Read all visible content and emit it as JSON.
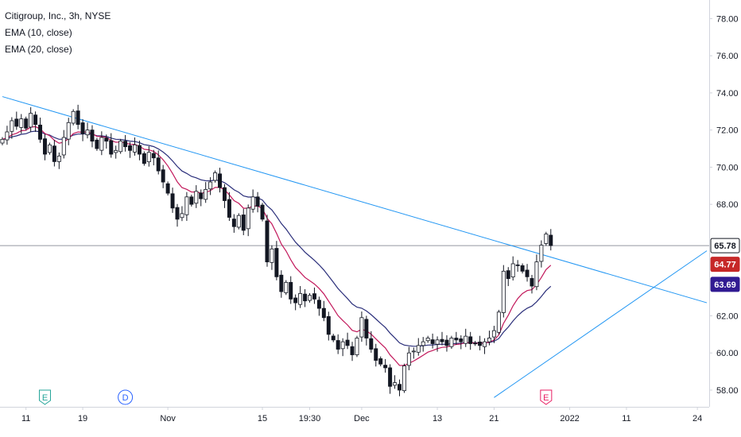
{
  "legend": {
    "symbol": "Citigroup, Inc., 3h, NYSE",
    "ema10": "EMA (10, close)",
    "ema20": "EMA (20, close)"
  },
  "colors": {
    "up": "#131722",
    "down": "#131722",
    "ema10": "#c2185b",
    "ema20": "#2a2e7a",
    "trendline": "#2196f3",
    "price_badge": "#131722",
    "ema10_badge": "#c62828",
    "ema20_badge": "#311b92"
  },
  "chart_data": {
    "type": "candlestick",
    "ylim": [
      57.1,
      79.0
    ],
    "y_ticks": [
      "78.00",
      "76.00",
      "74.00",
      "72.00",
      "70.00",
      "68.00",
      "62.00",
      "60.00",
      "58.00"
    ],
    "x_ticks": [
      "11",
      "19",
      "Nov",
      "15",
      "19:30",
      "Dec",
      "13",
      "21",
      "2022",
      "11",
      "24"
    ],
    "last_price": "65.78",
    "ema10_last": "64.77",
    "ema20_last": "63.69",
    "events": [
      {
        "label": "E",
        "x_index": 9,
        "color": "#26a69a"
      },
      {
        "label": "D",
        "x_index": 26,
        "color": "#2962ff"
      },
      {
        "label": "E",
        "x_index": 115,
        "color": "#e91e63"
      }
    ],
    "closes": [
      71.5,
      71.9,
      72.5,
      72.2,
      72.6,
      72.1,
      72.9,
      72.3,
      71.5,
      70.7,
      71.2,
      70.3,
      70.6,
      71.6,
      72.4,
      73.0,
      72.3,
      71.8,
      72.0,
      71.4,
      71.0,
      71.6,
      71.4,
      70.7,
      70.9,
      71.4,
      71.1,
      70.9,
      71.2,
      70.7,
      70.2,
      70.8,
      70.5,
      69.8,
      69.2,
      68.6,
      67.8,
      67.2,
      67.5,
      68.4,
      68.0,
      68.7,
      68.3,
      68.8,
      69.2,
      69.7,
      68.9,
      68.2,
      67.3,
      66.8,
      67.4,
      66.6,
      67.8,
      68.4,
      67.9,
      67.2,
      64.9,
      65.6,
      64.1,
      63.3,
      63.8,
      62.9,
      62.7,
      63.2,
      62.8,
      63.1,
      62.9,
      62.4,
      61.9,
      61.0,
      60.7,
      60.2,
      60.6,
      60.4,
      59.9,
      60.8,
      61.9,
      60.8,
      60.2,
      59.6,
      59.4,
      59.2,
      58.2,
      58.4,
      58.0,
      59.3,
      60.0,
      60.1,
      60.4,
      60.6,
      60.8,
      60.5,
      60.7,
      60.6,
      60.4,
      60.8,
      60.7,
      60.6,
      60.9,
      60.5,
      60.5,
      60.4,
      60.6,
      60.8,
      61.2,
      62.2,
      64.4,
      64.0,
      64.8,
      64.7,
      64.4,
      64.1,
      63.6,
      64.9,
      65.8,
      66.4,
      65.78
    ],
    "trendlines": [
      {
        "from": [
          0,
          73.8
        ],
        "to": [
          149,
          62.7
        ]
      },
      {
        "from": [
          104,
          57.6
        ],
        "to": [
          149,
          65.5
        ]
      }
    ]
  }
}
